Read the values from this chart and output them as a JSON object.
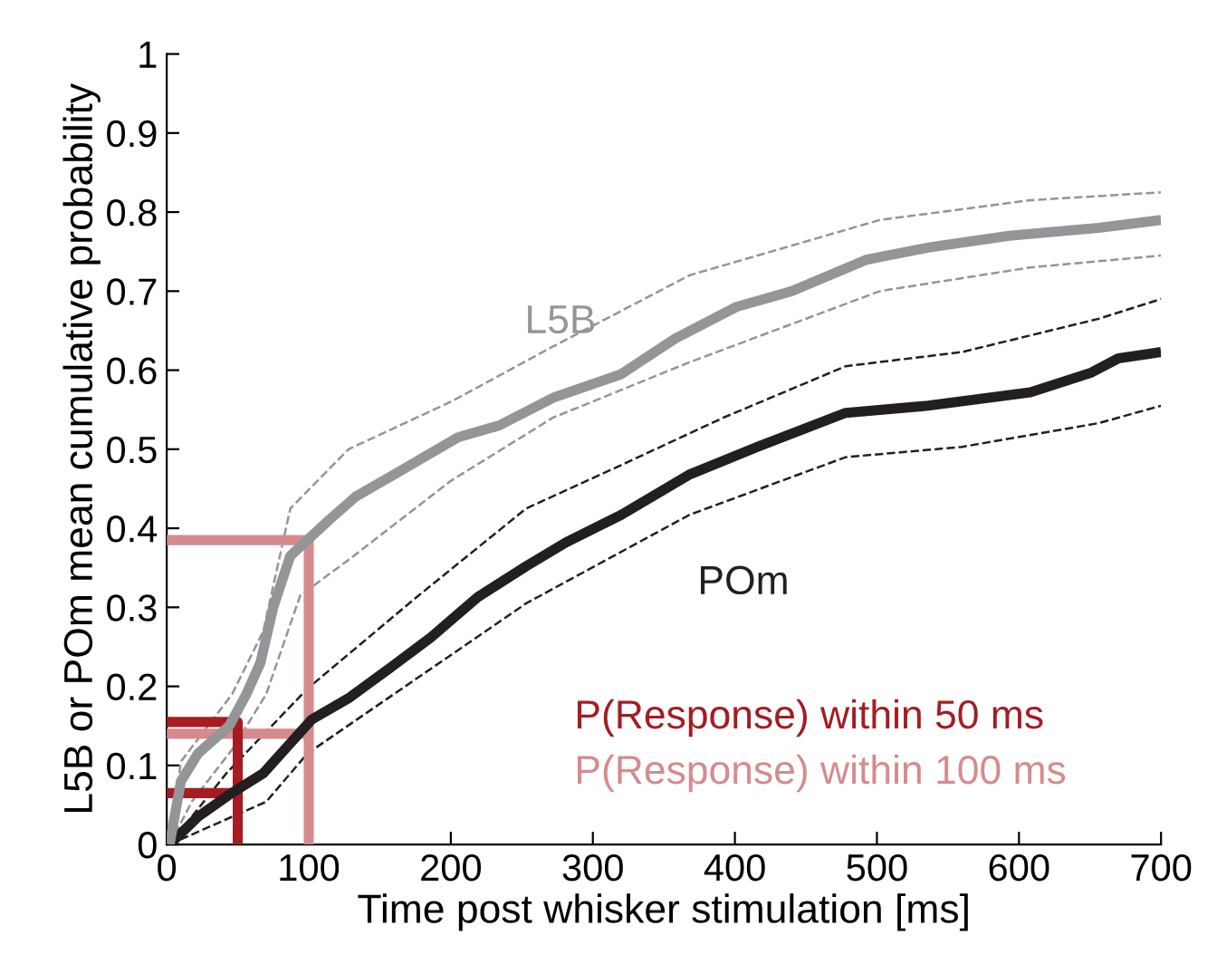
{
  "chart_data": {
    "type": "line",
    "xlabel": "Time post whisker stimulation [ms]",
    "ylabel": "L5B or POm mean cumulative probability",
    "xlim": [
      0,
      700
    ],
    "ylim": [
      0,
      1
    ],
    "xticks": [
      0,
      100,
      200,
      300,
      400,
      500,
      600,
      700
    ],
    "yticks": [
      0,
      0.1,
      0.2,
      0.3,
      0.4,
      0.5,
      0.6,
      0.7,
      0.8,
      0.9,
      1
    ],
    "grid": false,
    "legend": false,
    "line_style": "solid",
    "series": [
      {
        "color": "#939598",
        "line_style": "dashed",
        "x": [
          2,
          10,
          46,
          68,
          87,
          128,
          200,
          272,
          368,
          502,
          608,
          700
        ],
        "values": [
          0,
          0.105,
          0.19,
          0.27,
          0.425,
          0.5,
          0.56,
          0.63,
          0.72,
          0.79,
          0.815,
          0.825
        ]
      },
      {
        "color": "#939598",
        "line_style": "dashed",
        "x": [
          2,
          18,
          46,
          70,
          94,
          128,
          200,
          272,
          368,
          502,
          608,
          700
        ],
        "values": [
          0,
          0.055,
          0.12,
          0.19,
          0.315,
          0.36,
          0.46,
          0.54,
          0.61,
          0.7,
          0.73,
          0.745
        ]
      },
      {
        "color": "#231f20",
        "line_style": "dashed",
        "x": [
          2,
          42,
          99,
          176,
          253,
          320,
          392,
          478,
          560,
          656,
          700
        ],
        "values": [
          0,
          0.09,
          0.197,
          0.313,
          0.425,
          0.48,
          0.54,
          0.605,
          0.623,
          0.665,
          0.69
        ]
      },
      {
        "color": "#231f20",
        "line_style": "dashed",
        "x": [
          2,
          22,
          70,
          99,
          176,
          253,
          368,
          478,
          560,
          656,
          700
        ],
        "values": [
          0,
          0.016,
          0.054,
          0.115,
          0.21,
          0.305,
          0.417,
          0.49,
          0.503,
          0.533,
          0.555
        ]
      },
      {
        "name": "L5B",
        "color": "#939598",
        "x": [
          2,
          10,
          22,
          44,
          56,
          66,
          75,
          87,
          99,
          114,
          133,
          162,
          205,
          234,
          272,
          320,
          358,
          401,
          440,
          493,
          536,
          593,
          656,
          700
        ],
        "values": [
          0.0,
          0.08,
          0.115,
          0.15,
          0.19,
          0.23,
          0.3,
          0.365,
          0.385,
          0.41,
          0.44,
          0.47,
          0.515,
          0.53,
          0.565,
          0.595,
          0.64,
          0.68,
          0.7,
          0.74,
          0.755,
          0.77,
          0.78,
          0.79
        ]
      },
      {
        "name": "POm",
        "color": "#231f20",
        "x": [
          2,
          22,
          44,
          68,
          102,
          128,
          157,
          186,
          219,
          253,
          281,
          320,
          368,
          416,
          478,
          536,
          608,
          651,
          670,
          700
        ],
        "values": [
          0,
          0.035,
          0.063,
          0.09,
          0.158,
          0.185,
          0.223,
          0.262,
          0.313,
          0.352,
          0.382,
          0.417,
          0.468,
          0.503,
          0.546,
          0.555,
          0.572,
          0.597,
          0.615,
          0.623
        ]
      },
      {
        "name": "P(Response) within 50 ms",
        "color": "#a51c22",
        "x": [
          0,
          50,
          50,
          50,
          0
        ],
        "values": [
          0.155,
          0.155,
          0,
          0.065,
          0.065
        ]
      },
      {
        "name": "P(Response) within 100 ms",
        "color": "#d58b8e",
        "x": [
          0,
          100,
          100,
          100,
          0
        ],
        "values": [
          0.385,
          0.385,
          0,
          0.14,
          0.14
        ]
      }
    ]
  }
}
